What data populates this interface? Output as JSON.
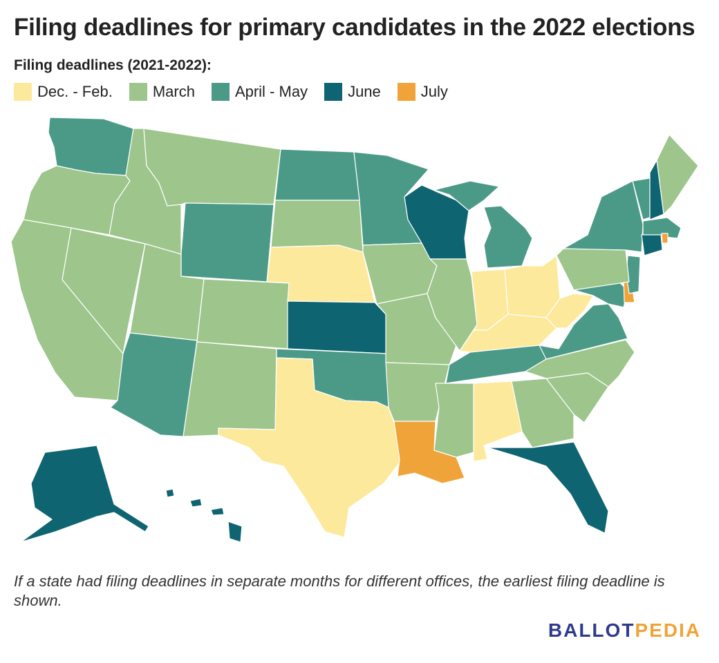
{
  "title": "Filing deadlines for primary candidates in the 2022 elections",
  "legend": {
    "title": "Filing deadlines (2021-2022):",
    "items": [
      {
        "key": "decfeb",
        "label": "Dec. - Feb.",
        "color": "#fde99c"
      },
      {
        "key": "march",
        "label": "March",
        "color": "#9dc58c"
      },
      {
        "key": "aprmay",
        "label": "April - May",
        "color": "#4b9a88"
      },
      {
        "key": "june",
        "label": "June",
        "color": "#0e6470"
      },
      {
        "key": "july",
        "label": "July",
        "color": "#f0a338"
      }
    ]
  },
  "footnote": "If a state had filing deadlines in separate months for different offices, the earliest filing deadline is shown.",
  "logo": {
    "part1": "BALLOT",
    "part2": "PEDIA",
    "color1": "#2e3a8c",
    "color2": "#f0a338"
  },
  "states": {
    "WA": "aprmay",
    "OR": "march",
    "CA": "march",
    "NV": "march",
    "ID": "march",
    "MT": "march",
    "WY": "aprmay",
    "UT": "march",
    "AZ": "aprmay",
    "CO": "march",
    "NM": "march",
    "ND": "aprmay",
    "SD": "march",
    "NE": "decfeb",
    "KS": "june",
    "OK": "aprmay",
    "TX": "decfeb",
    "MN": "aprmay",
    "IA": "march",
    "MO": "march",
    "AR": "march",
    "LA": "july",
    "WI": "june",
    "IL": "march",
    "MI": "aprmay",
    "IN": "decfeb",
    "OH": "decfeb",
    "KY": "decfeb",
    "TN": "aprmay",
    "MS": "march",
    "AL": "decfeb",
    "GA": "march",
    "FL": "june",
    "SC": "march",
    "NC": "march",
    "VA": "aprmay",
    "WV": "decfeb",
    "MD": "aprmay",
    "DE": "july",
    "NJ": "aprmay",
    "PA": "march",
    "NY": "aprmay",
    "CT": "june",
    "RI": "july",
    "MA": "aprmay",
    "VT": "aprmay",
    "NH": "june",
    "ME": "march",
    "AK": "june",
    "HI": "june"
  }
}
